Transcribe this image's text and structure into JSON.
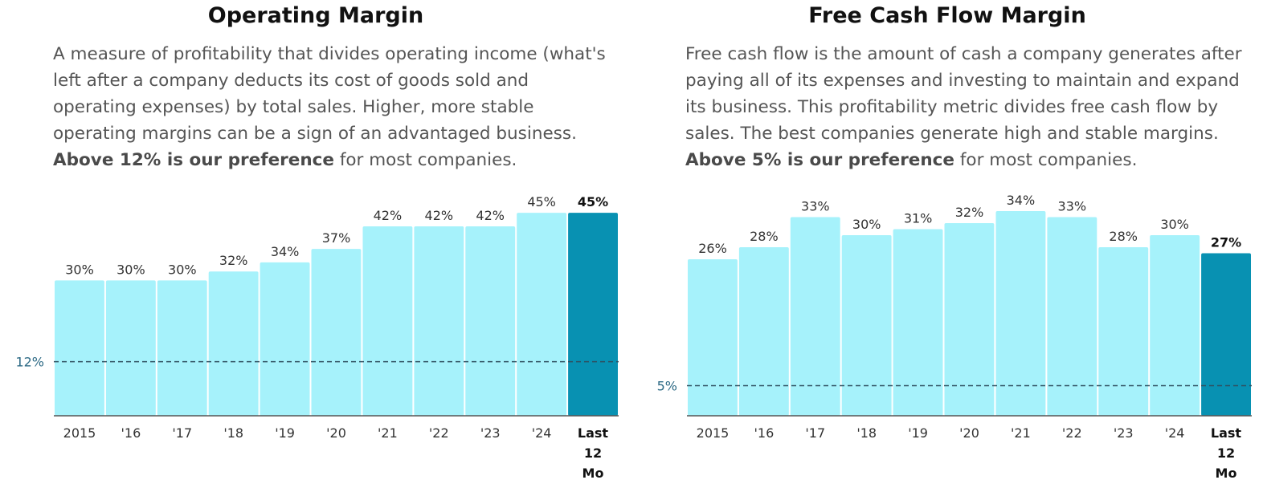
{
  "colors": {
    "bar": "#a6f2fb",
    "bar_current": "#0891b2",
    "reference_line": "#2f4f5f",
    "reference_label": "#2d6a85"
  },
  "charts": [
    {
      "title": "Operating Margin",
      "description_text": "A measure of profitability that divides operating income (what's left after a company deducts its cost of goods sold and operating expenses) by total sales. Higher, more stable operating margins can be a sign of an advantaged business.",
      "description_bold": "Above 12% is our preference",
      "description_tail": "for most companies."
    },
    {
      "title": "Free Cash Flow Margin",
      "description_text": "Free cash flow is the amount of cash a company generates after paying all of its expenses and investing to maintain and expand its business. This profitability metric divides free cash flow by sales. The best companies generate high and stable margins.",
      "description_bold": "Above 5% is our preference",
      "description_tail": "for most companies."
    }
  ],
  "chart_data": [
    {
      "type": "bar",
      "title": "Operating Margin",
      "categories": [
        "2015",
        "'16",
        "'17",
        "'18",
        "'19",
        "'20",
        "'21",
        "'22",
        "'23",
        "'24",
        "Last 12 Mo"
      ],
      "values": [
        30,
        30,
        30,
        32,
        34,
        37,
        42,
        42,
        42,
        45,
        45
      ],
      "value_labels": [
        "30%",
        "30%",
        "30%",
        "32%",
        "34%",
        "37%",
        "42%",
        "42%",
        "42%",
        "45%",
        "45%"
      ],
      "unit": "%",
      "reference_line": {
        "value": 12,
        "label": "12%"
      },
      "highlight_index": 10,
      "grid": false,
      "legend": "none"
    },
    {
      "type": "bar",
      "title": "Free Cash Flow Margin",
      "categories": [
        "2015",
        "'16",
        "'17",
        "'18",
        "'19",
        "'20",
        "'21",
        "'22",
        "'23",
        "'24",
        "Last 12 Mo"
      ],
      "values": [
        26,
        28,
        33,
        30,
        31,
        32,
        34,
        33,
        28,
        30,
        27
      ],
      "value_labels": [
        "26%",
        "28%",
        "33%",
        "30%",
        "31%",
        "32%",
        "34%",
        "33%",
        "28%",
        "30%",
        "27%"
      ],
      "unit": "%",
      "reference_line": {
        "value": 5,
        "label": "5%"
      },
      "highlight_index": 10,
      "grid": false,
      "legend": "none"
    }
  ]
}
